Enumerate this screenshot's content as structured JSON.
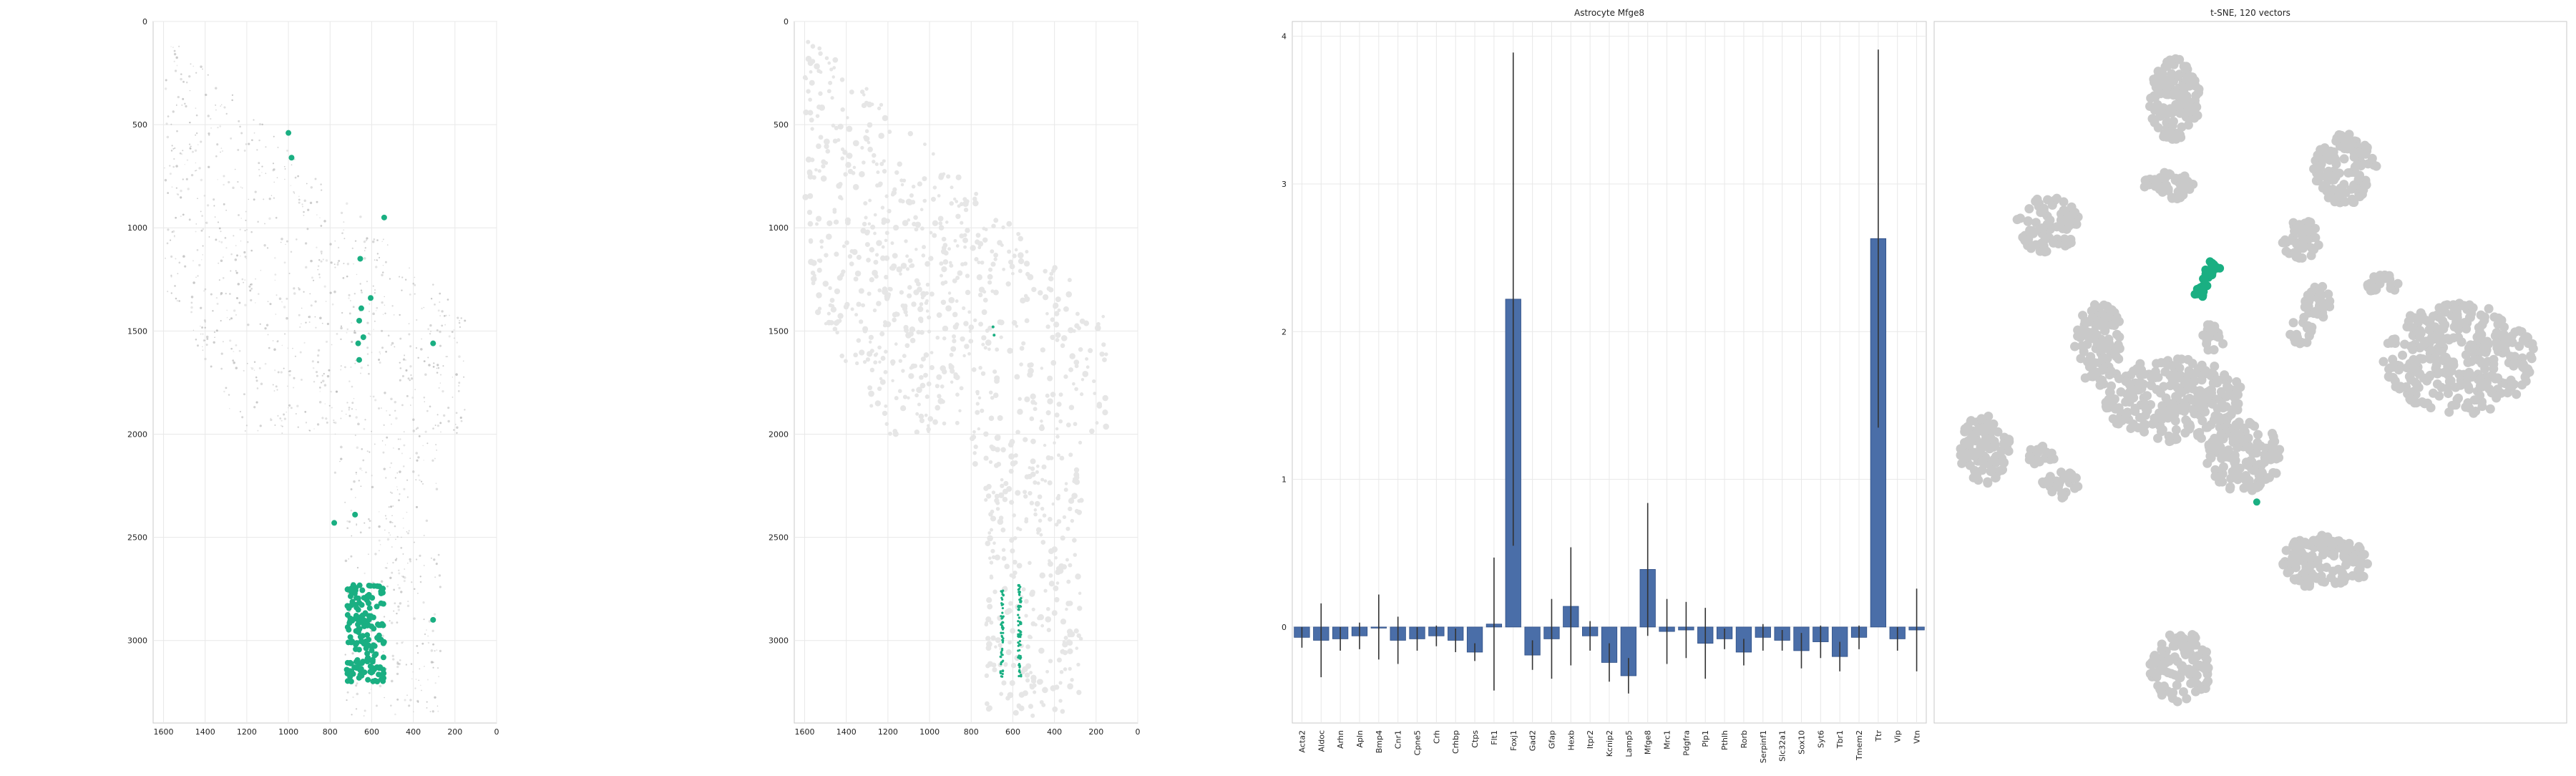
{
  "colors": {
    "highlight": "#1aaf82",
    "bar": "#4a6ea8",
    "bar_edge": "#2f4f86",
    "cloud": "#c9c9c9",
    "spatial_bg": "#e6e6e6",
    "grid": "#e8e8e8",
    "axis_frame": "#c8c8c8"
  },
  "chart_data": [
    {
      "type": "scatter",
      "title": "",
      "xlabel": "",
      "ylabel": "",
      "xlim": [
        1650,
        0
      ],
      "ylim": [
        3400,
        0
      ],
      "x_ticks": [
        1600,
        1400,
        1200,
        1000,
        800,
        600,
        400,
        200,
        0
      ],
      "y_ticks": [
        0,
        500,
        1000,
        1500,
        2000,
        2500,
        3000
      ],
      "grid": true,
      "highlight_points": [
        {
          "x": 1000,
          "y": 540
        },
        {
          "x": 985,
          "y": 660
        },
        {
          "x": 540,
          "y": 950
        },
        {
          "x": 655,
          "y": 1150
        },
        {
          "x": 605,
          "y": 1340
        },
        {
          "x": 650,
          "y": 1390
        },
        {
          "x": 660,
          "y": 1450
        },
        {
          "x": 640,
          "y": 1530
        },
        {
          "x": 665,
          "y": 1560
        },
        {
          "x": 660,
          "y": 1640
        },
        {
          "x": 305,
          "y": 1560
        },
        {
          "x": 780,
          "y": 2430
        },
        {
          "x": 680,
          "y": 2390
        },
        {
          "x": 305,
          "y": 2900
        }
      ],
      "highlight_cluster": {
        "x_range": [
          540,
          720
        ],
        "y_range": [
          2730,
          3200
        ]
      }
    },
    {
      "type": "scatter",
      "title": "",
      "xlabel": "",
      "ylabel": "",
      "xlim": [
        1650,
        0
      ],
      "ylim": [
        3400,
        0
      ],
      "x_ticks": [
        1600,
        1400,
        1200,
        1000,
        800,
        600,
        400,
        200,
        0
      ],
      "y_ticks": [
        0,
        500,
        1000,
        1500,
        2000,
        2500,
        3000
      ],
      "grid": true,
      "highlight_points": [
        {
          "x": 695,
          "y": 1480
        },
        {
          "x": 690,
          "y": 1520
        }
      ],
      "highlight_cluster": {
        "x_range": [
          560,
          660
        ],
        "y_range": [
          2730,
          3180
        ]
      }
    },
    {
      "type": "bar",
      "title": "Astrocyte Mfge8",
      "xlabel": "",
      "ylabel": "",
      "ylim": [
        -0.65,
        4.1
      ],
      "y_ticks": [
        0,
        1,
        2,
        3,
        4
      ],
      "grid": true,
      "categories": [
        "Acta2",
        "Aldoc",
        "Arhn",
        "Apln",
        "Bmp4",
        "Cnr1",
        "Cpne5",
        "Crh",
        "Crhbp",
        "Ctps",
        "Flt1",
        "Foxj1",
        "Gad2",
        "Gfap",
        "Hexb",
        "Itpr2",
        "Kcnip2",
        "Lamp5",
        "Mfge8",
        "Mrc1",
        "Pdgfra",
        "Plp1",
        "Pthlh",
        "Rorb",
        "Serpinf1",
        "Slc32a1",
        "Sox10",
        "Syt6",
        "Tbr1",
        "Tmem2",
        "Ttr",
        "Vip",
        "Vtn"
      ],
      "values": [
        -0.07,
        -0.09,
        -0.08,
        -0.06,
        0.0,
        -0.09,
        -0.08,
        -0.06,
        -0.09,
        -0.17,
        0.02,
        2.22,
        -0.19,
        -0.08,
        0.14,
        -0.06,
        -0.24,
        -0.33,
        0.39,
        -0.03,
        -0.02,
        -0.11,
        -0.08,
        -0.17,
        -0.07,
        -0.09,
        -0.16,
        -0.1,
        -0.2,
        -0.07,
        2.63,
        -0.08,
        -0.02
      ],
      "errors": [
        0.07,
        0.25,
        0.08,
        0.09,
        0.22,
        0.16,
        0.08,
        0.07,
        0.08,
        0.06,
        0.45,
        1.67,
        0.1,
        0.27,
        0.4,
        0.1,
        0.13,
        0.12,
        0.45,
        0.22,
        0.19,
        0.24,
        0.07,
        0.09,
        0.09,
        0.07,
        0.12,
        0.11,
        0.1,
        0.08,
        1.28,
        0.08,
        0.28
      ]
    },
    {
      "type": "scatter",
      "title": "t-SNE, 120 vectors",
      "xlabel": "",
      "ylabel": "",
      "axes_visible": false,
      "highlight_cluster": {
        "x": 0.43,
        "y": 0.37
      },
      "highlight_point": {
        "x": 0.51,
        "y": 0.685
      }
    }
  ]
}
